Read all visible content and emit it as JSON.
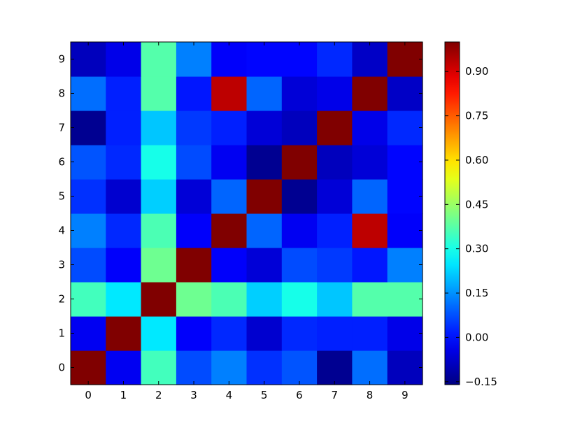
{
  "chart_data": {
    "type": "heatmap",
    "title": "",
    "xlabel": "",
    "ylabel": "",
    "x_categories": [
      "0",
      "1",
      "2",
      "3",
      "4",
      "5",
      "6",
      "7",
      "8",
      "9"
    ],
    "y_categories": [
      "0",
      "1",
      "2",
      "3",
      "4",
      "5",
      "6",
      "7",
      "8",
      "9"
    ],
    "y_order": "bottom-to-top",
    "values": [
      [
        1.0,
        -0.03,
        0.35,
        0.07,
        0.13,
        0.04,
        0.08,
        -0.14,
        0.11,
        -0.09
      ],
      [
        -0.03,
        1.0,
        0.25,
        -0.02,
        0.03,
        -0.07,
        0.03,
        0.02,
        0.02,
        -0.04
      ],
      [
        0.35,
        0.25,
        1.0,
        0.4,
        0.36,
        0.22,
        0.3,
        0.21,
        0.37,
        0.37
      ],
      [
        0.07,
        -0.02,
        0.4,
        1.0,
        -0.02,
        -0.06,
        0.07,
        0.05,
        0.01,
        0.13
      ],
      [
        0.13,
        0.03,
        0.36,
        -0.02,
        1.0,
        0.1,
        -0.03,
        0.02,
        0.93,
        -0.02
      ],
      [
        0.04,
        -0.07,
        0.22,
        -0.06,
        0.1,
        1.0,
        -0.14,
        -0.06,
        0.1,
        -0.01
      ],
      [
        0.08,
        0.03,
        0.3,
        0.07,
        -0.03,
        -0.14,
        1.0,
        -0.09,
        -0.06,
        -0.01
      ],
      [
        -0.14,
        0.02,
        0.21,
        0.05,
        0.02,
        -0.06,
        -0.09,
        1.0,
        -0.04,
        0.03
      ],
      [
        0.11,
        0.02,
        0.37,
        0.01,
        0.93,
        0.1,
        -0.06,
        -0.04,
        1.0,
        -0.08
      ],
      [
        -0.09,
        -0.04,
        0.37,
        0.13,
        -0.02,
        -0.01,
        -0.01,
        0.03,
        -0.08,
        1.0
      ]
    ],
    "colormap": "jet",
    "vmin": -0.16,
    "vmax": 1.0,
    "colorbar_ticks": [
      "0.90",
      "0.75",
      "0.60",
      "0.45",
      "0.30",
      "0.15",
      "0.00",
      "−0.15"
    ],
    "colorbar_tick_values": [
      0.9,
      0.75,
      0.6,
      0.45,
      0.3,
      0.15,
      0.0,
      -0.15
    ]
  }
}
